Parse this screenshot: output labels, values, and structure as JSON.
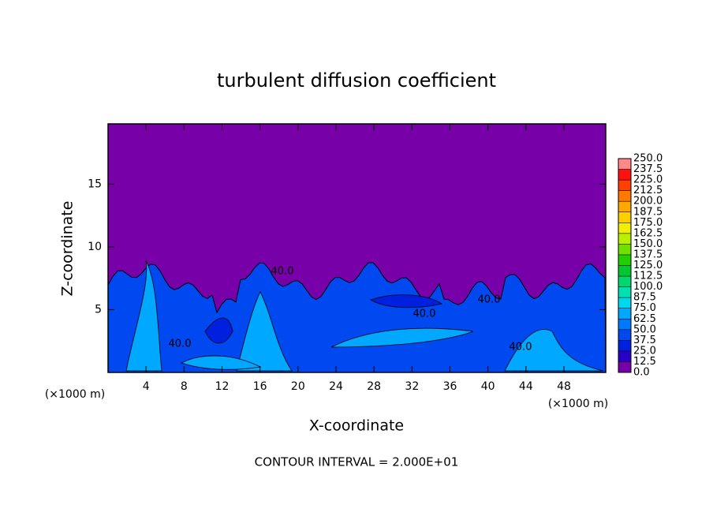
{
  "chart_data": {
    "type": "contour",
    "title": "turbulent diffusion coefficient",
    "xlabel": "X-coordinate",
    "ylabel": "Z-coordinate",
    "x_unit_labels": [
      "(×1000 m)",
      "(×1000 m)"
    ],
    "footer": "CONTOUR INTERVAL = 2.000E+01",
    "xlim": [
      0,
      52.4
    ],
    "xticks": [
      4,
      8,
      12,
      16,
      20,
      24,
      28,
      32,
      36,
      40,
      44,
      48
    ],
    "ylim": [
      0,
      19.8
    ],
    "yticks": [
      5,
      10,
      15
    ],
    "contour_labels": [
      {
        "value": 40,
        "label": "40.0"
      },
      {
        "value": 40,
        "label": "40.0"
      },
      {
        "value": 40,
        "label": "40.0"
      },
      {
        "value": 40,
        "label": "40.0"
      },
      {
        "value": 40,
        "label": "40.0"
      }
    ],
    "colorbar": {
      "levels": [
        {
          "value": 0,
          "label": "0.0"
        },
        {
          "value": 12.5,
          "label": "12.5"
        },
        {
          "value": 25,
          "label": "25.0"
        },
        {
          "value": 37.5,
          "label": "37.5"
        },
        {
          "value": 50,
          "label": "50.0"
        },
        {
          "value": 62.5,
          "label": "62.5"
        },
        {
          "value": 75,
          "label": "75.0"
        },
        {
          "value": 87.5,
          "label": "87.5"
        },
        {
          "value": 100,
          "label": "100.0"
        },
        {
          "value": 112.5,
          "label": "112.5"
        },
        {
          "value": 125,
          "label": "125.0"
        },
        {
          "value": 137.5,
          "label": "137.5"
        },
        {
          "value": 150,
          "label": "150.0"
        },
        {
          "value": 162.5,
          "label": "162.5"
        },
        {
          "value": 175,
          "label": "175.0"
        },
        {
          "value": 187.5,
          "label": "187.5"
        },
        {
          "value": 200,
          "label": "200.0"
        },
        {
          "value": 212.5,
          "label": "212.5"
        },
        {
          "value": 225,
          "label": "225.0"
        },
        {
          "value": 237.5,
          "label": "237.5"
        },
        {
          "value": 250,
          "label": "250.0"
        }
      ],
      "colors": [
        "#7800a8",
        "#2800c8",
        "#0020e0",
        "#0048f0",
        "#0078ff",
        "#00a8ff",
        "#00d8f0",
        "#00e0b0",
        "#00d870",
        "#00c830",
        "#20d000",
        "#70e000",
        "#b8f000",
        "#f0f000",
        "#ffd000",
        "#ffa800",
        "#ff7800",
        "#ff4000",
        "#ff1010",
        "#ff8888"
      ]
    }
  }
}
